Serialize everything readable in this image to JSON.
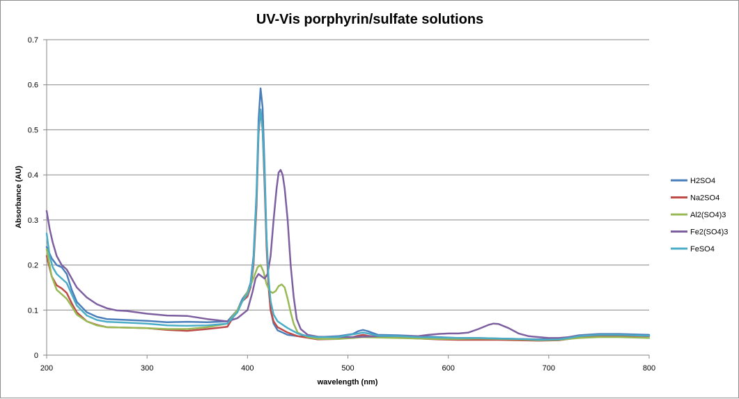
{
  "chart_data": {
    "type": "line",
    "title": "UV-Vis porphyrin/sulfate solutions",
    "xlabel": "wavelength (nm)",
    "ylabel": "Absorbance (AU)",
    "xlim": [
      200,
      800
    ],
    "ylim": [
      0,
      0.7
    ],
    "x_ticks": [
      "200",
      "300",
      "400",
      "500",
      "600",
      "700",
      "800"
    ],
    "y_ticks": [
      "0",
      "0.1",
      "0.2",
      "0.3",
      "0.4",
      "0.5",
      "0.6",
      "0.7"
    ],
    "grid": "horizontal",
    "legend_position": "right",
    "series": [
      {
        "name": "H2SO4",
        "color": "#4a7ebb",
        "points": [
          [
            200,
            0.24
          ],
          [
            205,
            0.215
          ],
          [
            210,
            0.2
          ],
          [
            215,
            0.195
          ],
          [
            220,
            0.18
          ],
          [
            225,
            0.145
          ],
          [
            230,
            0.118
          ],
          [
            240,
            0.095
          ],
          [
            250,
            0.085
          ],
          [
            260,
            0.08
          ],
          [
            280,
            0.078
          ],
          [
            300,
            0.076
          ],
          [
            320,
            0.073
          ],
          [
            340,
            0.074
          ],
          [
            360,
            0.073
          ],
          [
            380,
            0.075
          ],
          [
            390,
            0.1
          ],
          [
            395,
            0.125
          ],
          [
            400,
            0.14
          ],
          [
            403,
            0.16
          ],
          [
            406,
            0.22
          ],
          [
            409,
            0.36
          ],
          [
            411,
            0.52
          ],
          [
            413,
            0.592
          ],
          [
            415,
            0.55
          ],
          [
            417,
            0.42
          ],
          [
            419,
            0.26
          ],
          [
            421,
            0.16
          ],
          [
            423,
            0.1
          ],
          [
            426,
            0.07
          ],
          [
            430,
            0.055
          ],
          [
            440,
            0.045
          ],
          [
            450,
            0.042
          ],
          [
            470,
            0.04
          ],
          [
            490,
            0.042
          ],
          [
            505,
            0.047
          ],
          [
            510,
            0.053
          ],
          [
            515,
            0.056
          ],
          [
            520,
            0.053
          ],
          [
            530,
            0.045
          ],
          [
            550,
            0.044
          ],
          [
            570,
            0.042
          ],
          [
            590,
            0.04
          ],
          [
            610,
            0.038
          ],
          [
            630,
            0.038
          ],
          [
            650,
            0.037
          ],
          [
            670,
            0.036
          ],
          [
            690,
            0.035
          ],
          [
            710,
            0.036
          ],
          [
            720,
            0.04
          ],
          [
            730,
            0.044
          ],
          [
            750,
            0.047
          ],
          [
            770,
            0.047
          ],
          [
            800,
            0.045
          ]
        ]
      },
      {
        "name": "Na2SO4",
        "color": "#be4b48",
        "points": [
          [
            200,
            0.22
          ],
          [
            205,
            0.175
          ],
          [
            210,
            0.155
          ],
          [
            215,
            0.148
          ],
          [
            220,
            0.138
          ],
          [
            225,
            0.115
          ],
          [
            230,
            0.095
          ],
          [
            240,
            0.075
          ],
          [
            250,
            0.067
          ],
          [
            260,
            0.062
          ],
          [
            280,
            0.061
          ],
          [
            300,
            0.06
          ],
          [
            320,
            0.056
          ],
          [
            340,
            0.054
          ],
          [
            360,
            0.058
          ],
          [
            380,
            0.063
          ],
          [
            390,
            0.1
          ],
          [
            395,
            0.12
          ],
          [
            400,
            0.13
          ],
          [
            403,
            0.15
          ],
          [
            406,
            0.2
          ],
          [
            409,
            0.33
          ],
          [
            411,
            0.49
          ],
          [
            413,
            0.545
          ],
          [
            415,
            0.5
          ],
          [
            417,
            0.38
          ],
          [
            419,
            0.24
          ],
          [
            421,
            0.15
          ],
          [
            423,
            0.1
          ],
          [
            426,
            0.075
          ],
          [
            430,
            0.062
          ],
          [
            440,
            0.05
          ],
          [
            450,
            0.042
          ],
          [
            470,
            0.035
          ],
          [
            490,
            0.036
          ],
          [
            505,
            0.04
          ],
          [
            510,
            0.043
          ],
          [
            515,
            0.045
          ],
          [
            520,
            0.043
          ],
          [
            530,
            0.04
          ],
          [
            550,
            0.039
          ],
          [
            570,
            0.037
          ],
          [
            590,
            0.035
          ],
          [
            610,
            0.034
          ],
          [
            630,
            0.034
          ],
          [
            650,
            0.034
          ],
          [
            670,
            0.033
          ],
          [
            690,
            0.032
          ],
          [
            710,
            0.033
          ],
          [
            720,
            0.036
          ],
          [
            730,
            0.04
          ],
          [
            750,
            0.043
          ],
          [
            770,
            0.043
          ],
          [
            800,
            0.042
          ]
        ]
      },
      {
        "name": "Al2(SO4)3",
        "color": "#98b954",
        "points": [
          [
            200,
            0.235
          ],
          [
            205,
            0.175
          ],
          [
            210,
            0.145
          ],
          [
            215,
            0.135
          ],
          [
            220,
            0.125
          ],
          [
            225,
            0.108
          ],
          [
            230,
            0.09
          ],
          [
            240,
            0.075
          ],
          [
            250,
            0.066
          ],
          [
            260,
            0.062
          ],
          [
            280,
            0.061
          ],
          [
            300,
            0.06
          ],
          [
            320,
            0.058
          ],
          [
            340,
            0.058
          ],
          [
            360,
            0.062
          ],
          [
            380,
            0.07
          ],
          [
            390,
            0.1
          ],
          [
            395,
            0.12
          ],
          [
            400,
            0.14
          ],
          [
            405,
            0.165
          ],
          [
            410,
            0.195
          ],
          [
            413,
            0.2
          ],
          [
            416,
            0.185
          ],
          [
            419,
            0.158
          ],
          [
            422,
            0.142
          ],
          [
            425,
            0.138
          ],
          [
            428,
            0.142
          ],
          [
            431,
            0.153
          ],
          [
            434,
            0.157
          ],
          [
            437,
            0.15
          ],
          [
            440,
            0.125
          ],
          [
            443,
            0.095
          ],
          [
            446,
            0.07
          ],
          [
            450,
            0.05
          ],
          [
            460,
            0.04
          ],
          [
            470,
            0.036
          ],
          [
            490,
            0.036
          ],
          [
            505,
            0.038
          ],
          [
            515,
            0.04
          ],
          [
            530,
            0.039
          ],
          [
            550,
            0.038
          ],
          [
            570,
            0.037
          ],
          [
            590,
            0.036
          ],
          [
            610,
            0.036
          ],
          [
            630,
            0.037
          ],
          [
            650,
            0.036
          ],
          [
            670,
            0.035
          ],
          [
            690,
            0.033
          ],
          [
            710,
            0.034
          ],
          [
            720,
            0.036
          ],
          [
            730,
            0.038
          ],
          [
            750,
            0.04
          ],
          [
            770,
            0.04
          ],
          [
            800,
            0.038
          ]
        ]
      },
      {
        "name": "Fe2(SO4)3",
        "color": "#7d5fa0",
        "points": [
          [
            200,
            0.32
          ],
          [
            203,
            0.28
          ],
          [
            206,
            0.25
          ],
          [
            210,
            0.22
          ],
          [
            215,
            0.2
          ],
          [
            220,
            0.19
          ],
          [
            225,
            0.17
          ],
          [
            230,
            0.15
          ],
          [
            240,
            0.128
          ],
          [
            250,
            0.113
          ],
          [
            260,
            0.104
          ],
          [
            270,
            0.099
          ],
          [
            280,
            0.098
          ],
          [
            300,
            0.092
          ],
          [
            320,
            0.088
          ],
          [
            340,
            0.087
          ],
          [
            360,
            0.08
          ],
          [
            380,
            0.075
          ],
          [
            390,
            0.082
          ],
          [
            400,
            0.1
          ],
          [
            405,
            0.14
          ],
          [
            408,
            0.17
          ],
          [
            411,
            0.18
          ],
          [
            414,
            0.175
          ],
          [
            417,
            0.17
          ],
          [
            420,
            0.18
          ],
          [
            423,
            0.22
          ],
          [
            426,
            0.3
          ],
          [
            429,
            0.37
          ],
          [
            431,
            0.405
          ],
          [
            433,
            0.411
          ],
          [
            435,
            0.4
          ],
          [
            437,
            0.37
          ],
          [
            440,
            0.3
          ],
          [
            443,
            0.2
          ],
          [
            446,
            0.13
          ],
          [
            449,
            0.08
          ],
          [
            453,
            0.058
          ],
          [
            460,
            0.045
          ],
          [
            470,
            0.041
          ],
          [
            490,
            0.04
          ],
          [
            505,
            0.04
          ],
          [
            515,
            0.041
          ],
          [
            530,
            0.042
          ],
          [
            550,
            0.042
          ],
          [
            570,
            0.042
          ],
          [
            580,
            0.045
          ],
          [
            590,
            0.047
          ],
          [
            600,
            0.048
          ],
          [
            610,
            0.048
          ],
          [
            620,
            0.05
          ],
          [
            630,
            0.058
          ],
          [
            640,
            0.067
          ],
          [
            645,
            0.07
          ],
          [
            650,
            0.069
          ],
          [
            660,
            0.06
          ],
          [
            670,
            0.048
          ],
          [
            680,
            0.042
          ],
          [
            690,
            0.04
          ],
          [
            700,
            0.038
          ],
          [
            710,
            0.038
          ],
          [
            720,
            0.04
          ],
          [
            730,
            0.043
          ],
          [
            750,
            0.045
          ],
          [
            770,
            0.045
          ],
          [
            800,
            0.043
          ]
        ]
      },
      {
        "name": "FeSO4",
        "color": "#4bacc6",
        "points": [
          [
            200,
            0.27
          ],
          [
            203,
            0.22
          ],
          [
            206,
            0.195
          ],
          [
            210,
            0.18
          ],
          [
            215,
            0.17
          ],
          [
            220,
            0.16
          ],
          [
            225,
            0.135
          ],
          [
            230,
            0.11
          ],
          [
            240,
            0.088
          ],
          [
            250,
            0.078
          ],
          [
            260,
            0.074
          ],
          [
            280,
            0.072
          ],
          [
            300,
            0.07
          ],
          [
            320,
            0.066
          ],
          [
            340,
            0.065
          ],
          [
            360,
            0.066
          ],
          [
            380,
            0.07
          ],
          [
            390,
            0.095
          ],
          [
            395,
            0.12
          ],
          [
            400,
            0.135
          ],
          [
            403,
            0.155
          ],
          [
            406,
            0.21
          ],
          [
            409,
            0.35
          ],
          [
            411,
            0.5
          ],
          [
            413,
            0.545
          ],
          [
            415,
            0.5
          ],
          [
            417,
            0.4
          ],
          [
            419,
            0.26
          ],
          [
            421,
            0.17
          ],
          [
            423,
            0.12
          ],
          [
            426,
            0.09
          ],
          [
            430,
            0.075
          ],
          [
            440,
            0.06
          ],
          [
            450,
            0.048
          ],
          [
            460,
            0.042
          ],
          [
            470,
            0.04
          ],
          [
            490,
            0.04
          ],
          [
            505,
            0.046
          ],
          [
            515,
            0.05
          ],
          [
            520,
            0.048
          ],
          [
            530,
            0.043
          ],
          [
            550,
            0.042
          ],
          [
            570,
            0.04
          ],
          [
            590,
            0.039
          ],
          [
            610,
            0.038
          ],
          [
            630,
            0.038
          ],
          [
            650,
            0.037
          ],
          [
            670,
            0.036
          ],
          [
            690,
            0.034
          ],
          [
            710,
            0.035
          ],
          [
            720,
            0.038
          ],
          [
            730,
            0.042
          ],
          [
            750,
            0.045
          ],
          [
            770,
            0.045
          ],
          [
            800,
            0.043
          ]
        ]
      }
    ]
  }
}
